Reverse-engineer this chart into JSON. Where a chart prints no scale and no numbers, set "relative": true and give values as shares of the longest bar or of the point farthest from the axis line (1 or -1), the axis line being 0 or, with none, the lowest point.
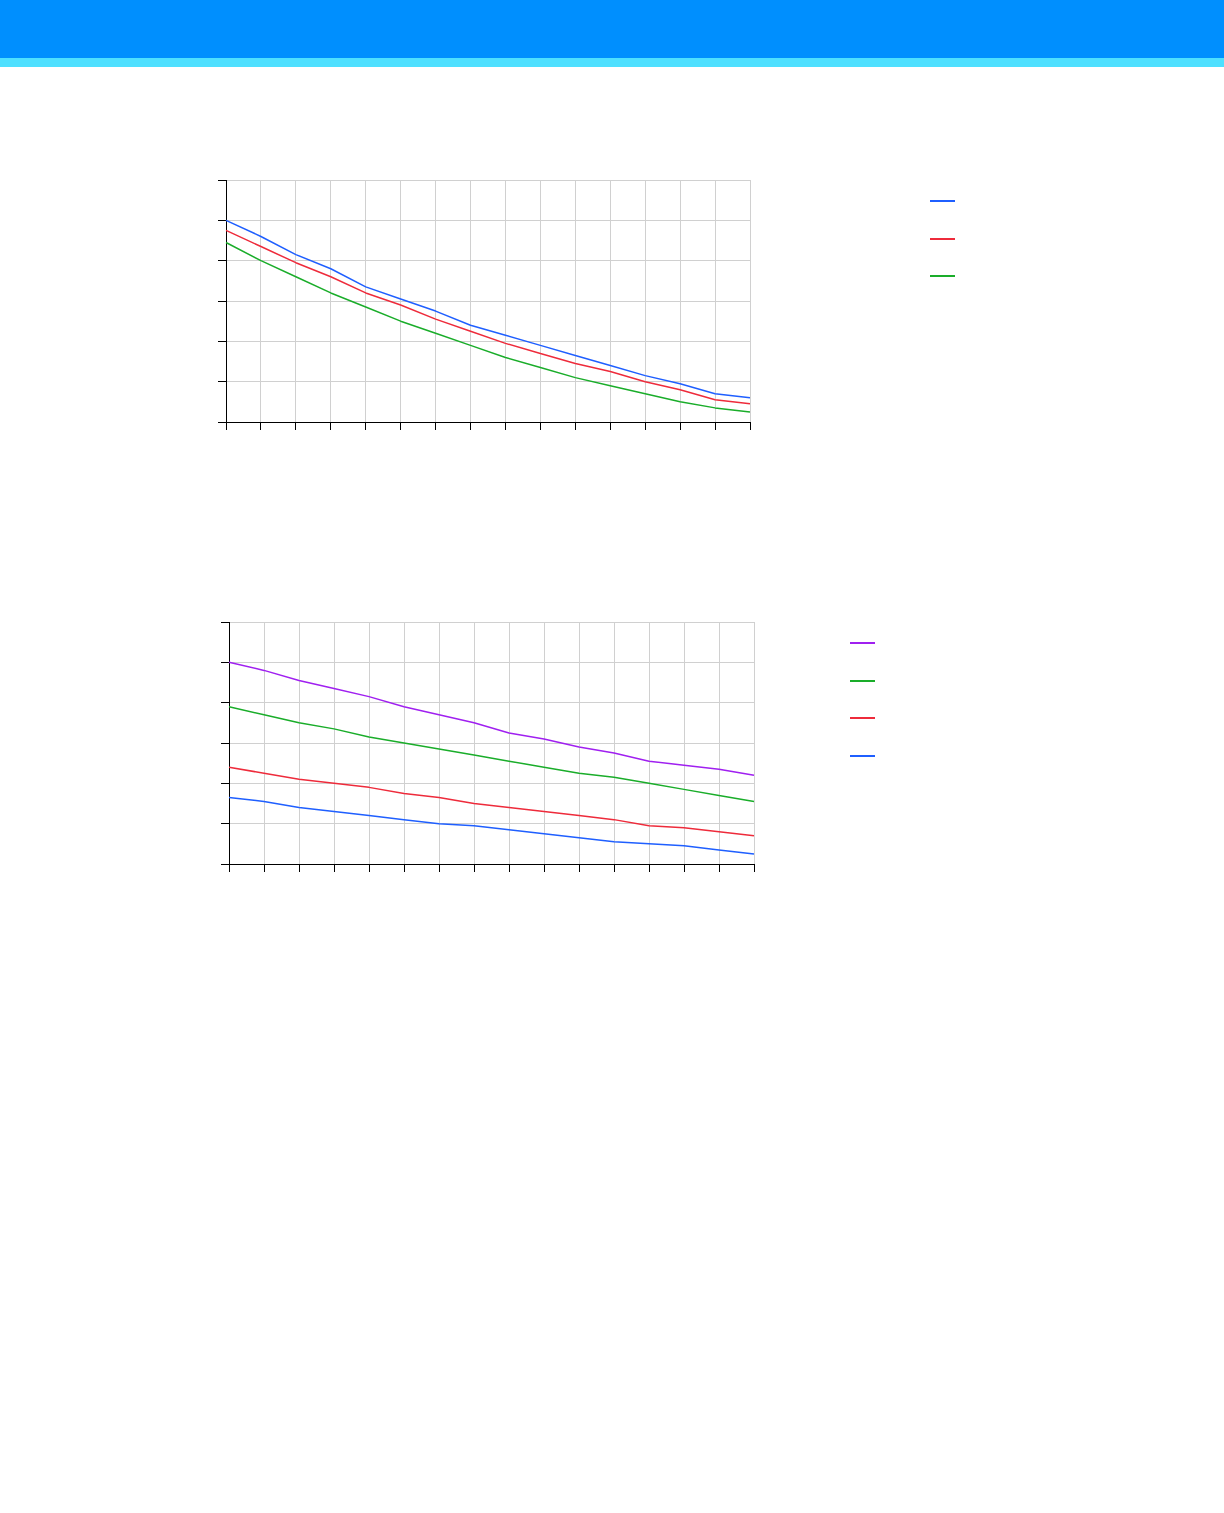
{
  "chart_data": [
    {
      "type": "line",
      "relative": true,
      "categories": [
        null,
        null,
        null,
        null,
        null,
        null,
        null,
        null,
        null,
        null,
        null,
        null,
        null,
        null,
        null,
        null
      ],
      "grid": true,
      "tick_labels": false,
      "marker": "none",
      "line_style": "solid",
      "series": [
        {
          "color": "#1f5fff",
          "values": [
            1.0,
            0.92,
            0.83,
            0.76,
            0.67,
            0.61,
            0.55,
            0.48,
            0.43,
            0.38,
            0.33,
            0.28,
            0.23,
            0.19,
            0.14,
            0.12
          ]
        },
        {
          "color": "#ee2b3b",
          "values": [
            0.95,
            0.87,
            0.79,
            0.72,
            0.64,
            0.58,
            0.51,
            0.45,
            0.39,
            0.34,
            0.29,
            0.25,
            0.2,
            0.16,
            0.11,
            0.09
          ]
        },
        {
          "color": "#1aad2a",
          "values": [
            0.89,
            0.8,
            0.72,
            0.64,
            0.57,
            0.5,
            0.44,
            0.38,
            0.32,
            0.27,
            0.22,
            0.18,
            0.14,
            0.1,
            0.07,
            0.05
          ]
        }
      ]
    },
    {
      "type": "line",
      "relative": true,
      "categories": [
        null,
        null,
        null,
        null,
        null,
        null,
        null,
        null,
        null,
        null,
        null,
        null,
        null,
        null,
        null,
        null
      ],
      "grid": true,
      "tick_labels": false,
      "marker": "none",
      "line_style": "solid",
      "series": [
        {
          "color": "#a020f0",
          "values": [
            1.0,
            0.96,
            0.91,
            0.87,
            0.83,
            0.78,
            0.74,
            0.7,
            0.65,
            0.62,
            0.58,
            0.55,
            0.51,
            0.49,
            0.47,
            0.44
          ]
        },
        {
          "color": "#1aad2a",
          "values": [
            0.78,
            0.74,
            0.7,
            0.67,
            0.63,
            0.6,
            0.57,
            0.54,
            0.51,
            0.48,
            0.45,
            0.43,
            0.4,
            0.37,
            0.34,
            0.31
          ]
        },
        {
          "color": "#ee2b3b",
          "values": [
            0.48,
            0.45,
            0.42,
            0.4,
            0.38,
            0.35,
            0.33,
            0.3,
            0.28,
            0.26,
            0.24,
            0.22,
            0.19,
            0.18,
            0.16,
            0.14
          ]
        },
        {
          "color": "#1f5fff",
          "values": [
            0.33,
            0.31,
            0.28,
            0.26,
            0.24,
            0.22,
            0.2,
            0.19,
            0.17,
            0.15,
            0.13,
            0.11,
            0.1,
            0.09,
            0.07,
            0.05
          ]
        }
      ]
    }
  ]
}
